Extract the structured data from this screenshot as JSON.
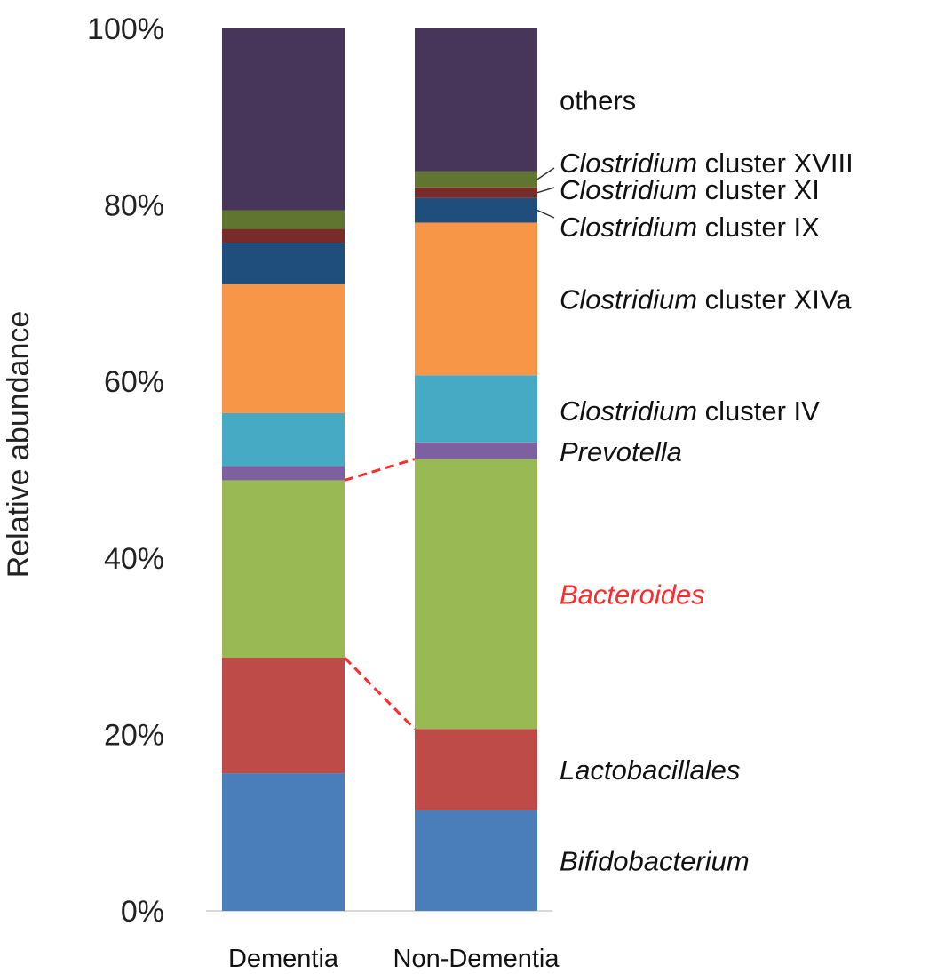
{
  "chart_data": {
    "type": "bar",
    "stacked": true,
    "title": "",
    "xlabel": "",
    "ylabel": "Relative abundance",
    "ylim": [
      0,
      100
    ],
    "yticks": [
      "0%",
      "20%",
      "40%",
      "60%",
      "80%",
      "100%"
    ],
    "categories": [
      "Dementia",
      "Non-Dementia"
    ],
    "series": [
      {
        "name": "Bifidobacterium",
        "italic": "Bifidobacterium",
        "rest": "",
        "color": "#4a7ebb",
        "values": [
          15.6,
          11.4
        ]
      },
      {
        "name": "Lactobacillales",
        "italic": "Lactobacillales",
        "rest": "",
        "color": "#be4b48",
        "values": [
          13.1,
          9.2
        ]
      },
      {
        "name": "Bacteroides",
        "italic": "Bacteroides",
        "rest": "",
        "color": "#98b954",
        "label_color": "#ff2a2a",
        "values": [
          20.1,
          30.6
        ]
      },
      {
        "name": "Prevotella",
        "italic": "Prevotella",
        "rest": "",
        "color": "#7d60a0",
        "values": [
          1.6,
          1.9
        ]
      },
      {
        "name": "Clostridium cluster IV",
        "italic": "Clostridium",
        "rest": " cluster IV",
        "color": "#46aac5",
        "values": [
          6.0,
          7.6
        ]
      },
      {
        "name": "Clostridium cluster XIVa",
        "italic": "Clostridium",
        "rest": " cluster XIVa",
        "color": "#f79646",
        "values": [
          14.6,
          17.3
        ]
      },
      {
        "name": "Clostridium cluster IX",
        "italic": "Clostridium",
        "rest": " cluster IX",
        "color": "#1f4e7c",
        "values": [
          4.7,
          2.8
        ]
      },
      {
        "name": "Clostridium cluster XI",
        "italic": "Clostridium",
        "rest": " cluster XI",
        "color": "#772c2a",
        "values": [
          1.6,
          1.2
        ]
      },
      {
        "name": "Clostridium cluster XVIII",
        "italic": "Clostridium",
        "rest": " cluster XVIII",
        "color": "#5f7530",
        "values": [
          2.1,
          1.8
        ]
      },
      {
        "name": "others",
        "italic": "",
        "rest": "others",
        "color": "#473659",
        "values": [
          20.6,
          16.2
        ]
      }
    ],
    "annotations": [
      "Dashed red lines connect Bacteroides segment boundaries between groups"
    ],
    "legend": "right",
    "grid": false
  }
}
